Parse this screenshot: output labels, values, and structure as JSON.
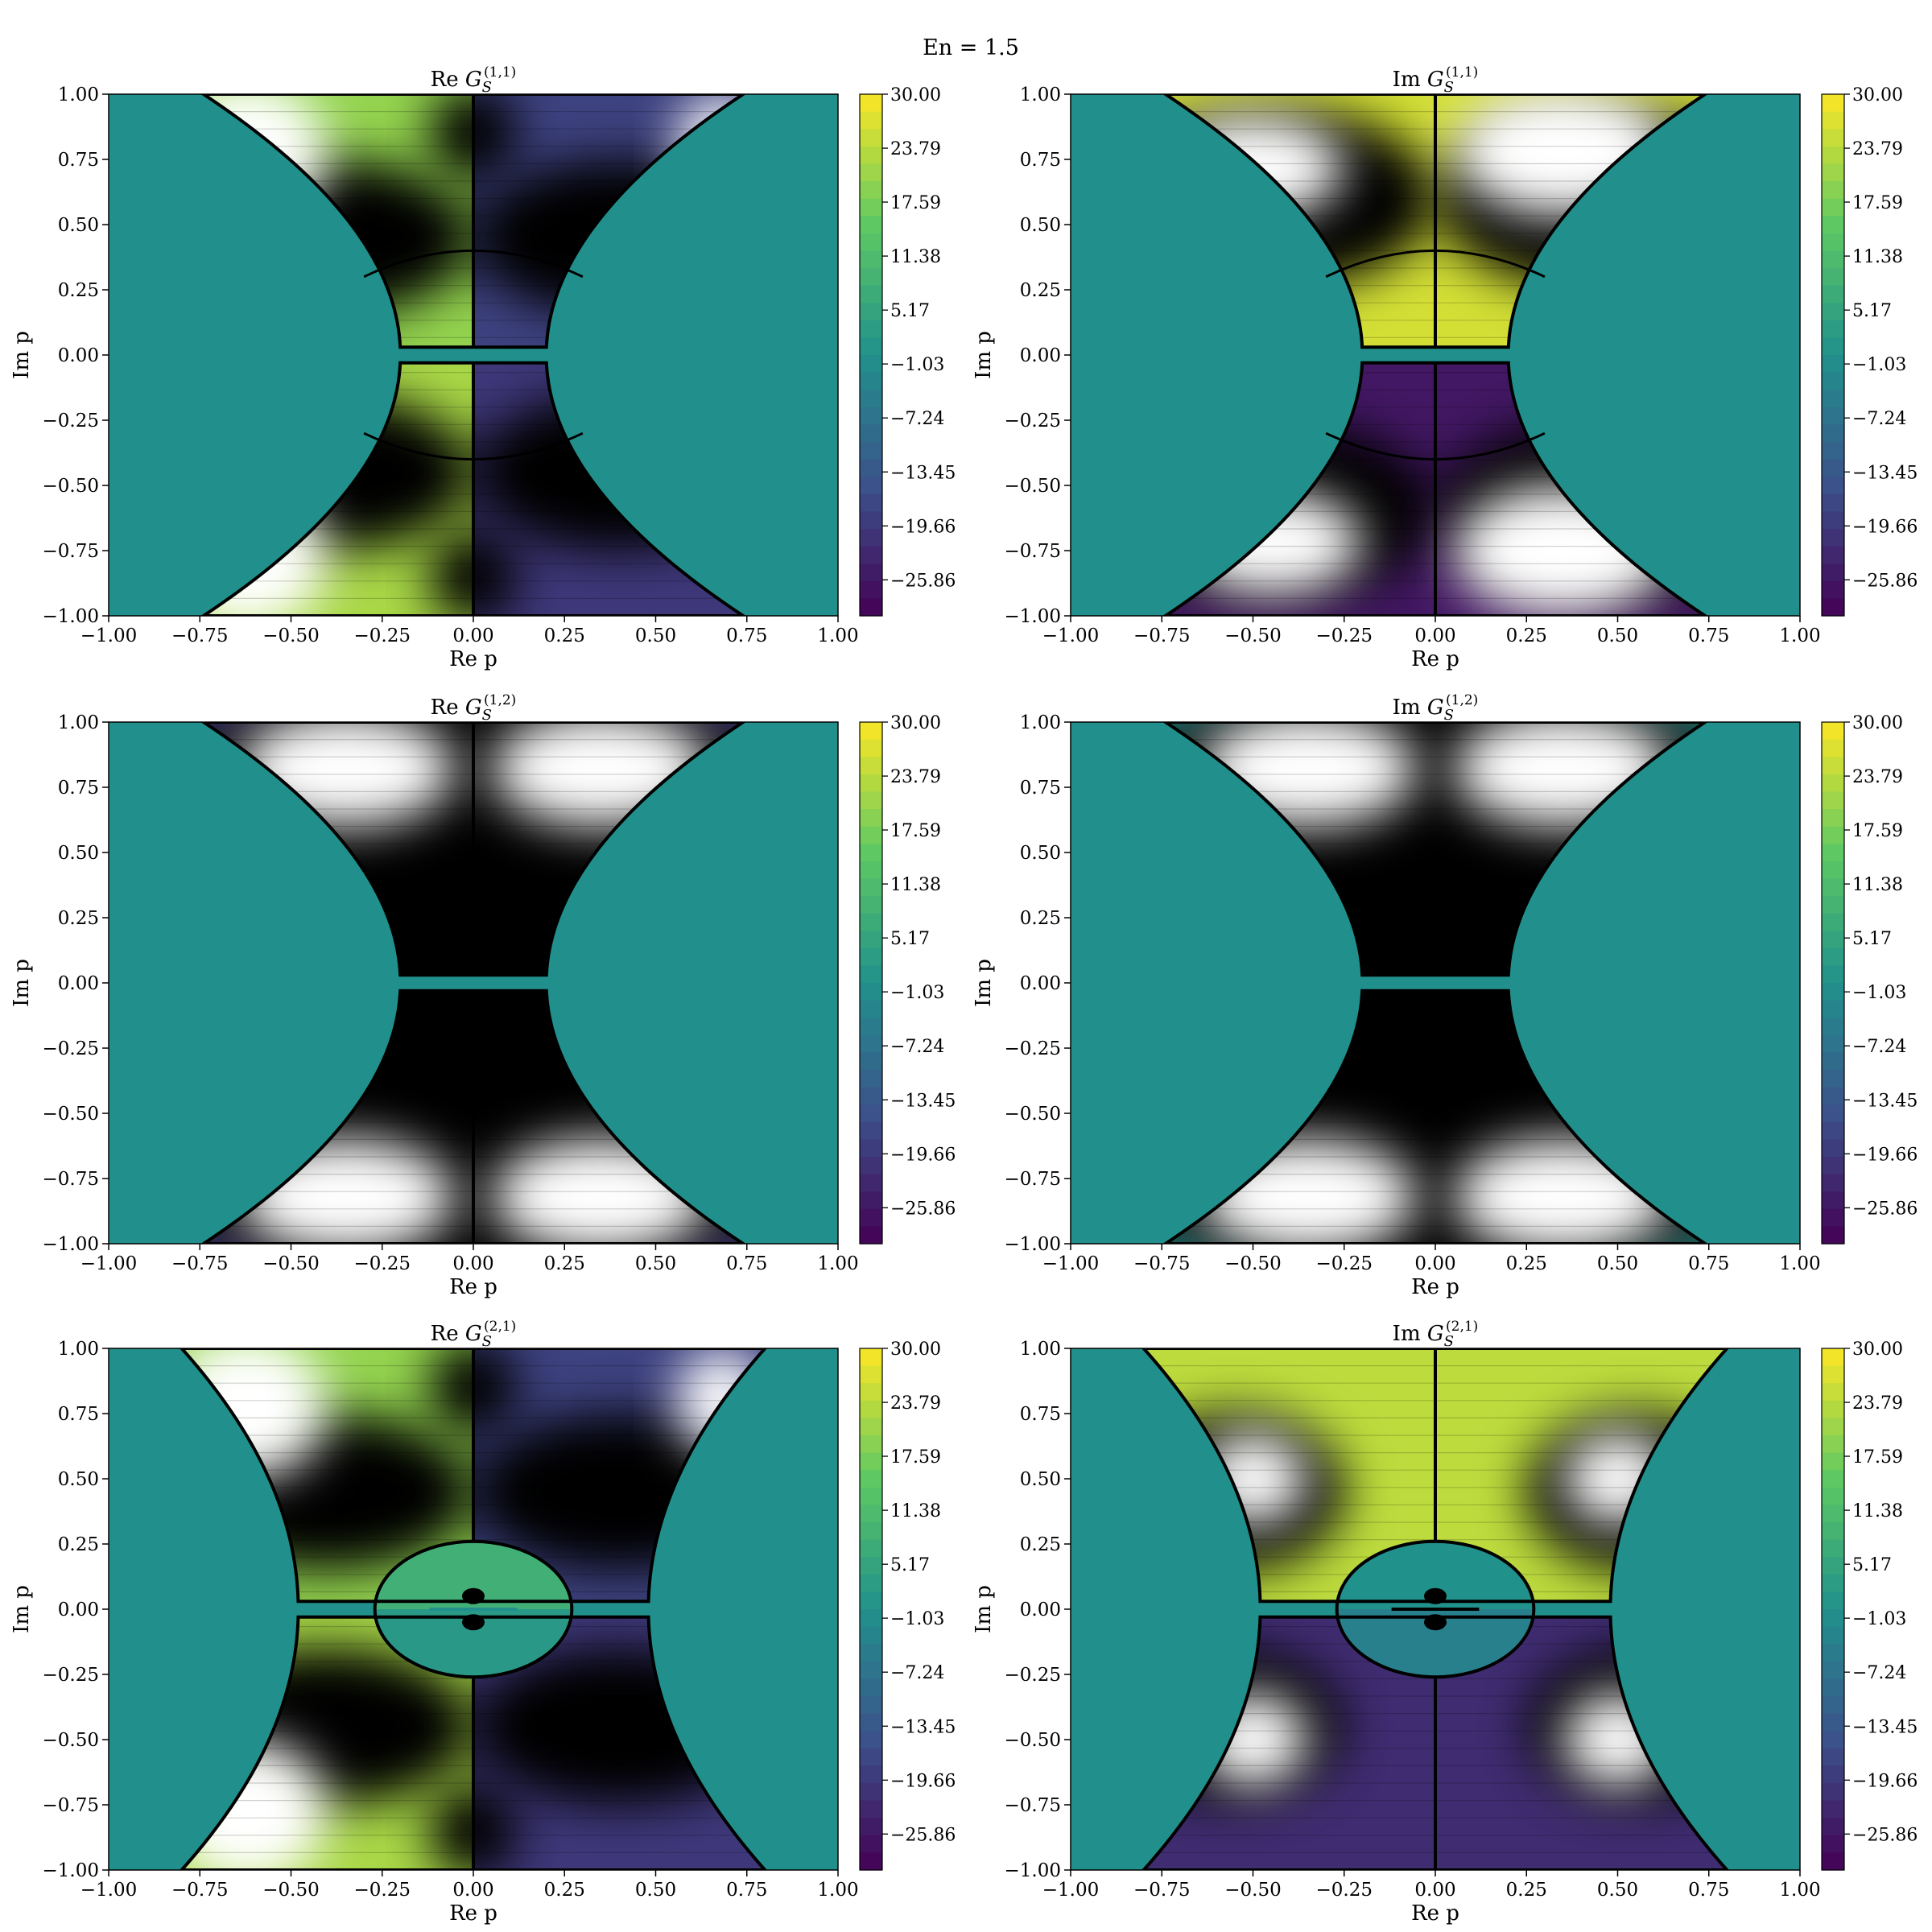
{
  "figure": {
    "suptitle": "En = 1.5",
    "xlabel": "Re p",
    "ylabel": "Im p"
  },
  "colors": {
    "cmap": [
      "#440154",
      "#3b528b",
      "#21918c",
      "#5ec962",
      "#fde725"
    ],
    "outside": "#21908c",
    "black_region": "#000000",
    "white_region": "#ffffff"
  },
  "chart_data": [
    {
      "type": "heatmap",
      "title_prefix": "Re",
      "title_sym": "G",
      "title_sub": "S",
      "title_sup": "(1,1)",
      "xlim": [
        -1.0,
        1.0
      ],
      "ylim": [
        -1.0,
        1.0
      ],
      "xticks": [
        "−1.00",
        "−0.75",
        "−0.50",
        "−0.25",
        "0.00",
        "0.25",
        "0.50",
        "0.75",
        "1.00"
      ],
      "yticks": [
        "−1.00",
        "−0.75",
        "−0.50",
        "−0.25",
        "0.00",
        "0.25",
        "0.50",
        "0.75",
        "1.00"
      ],
      "colorbar_ticks": [
        "30.00",
        "23.79",
        "17.59",
        "11.38",
        "5.17",
        "−1.03",
        "−7.24",
        "−13.45",
        "−19.66",
        "−25.86"
      ],
      "colorbar_range": [
        -30,
        30
      ],
      "boundary_x_at_edge": 0.74,
      "boundary_x_at_center": 0.2,
      "inner_arc_y": 0.4,
      "pattern": "re11"
    },
    {
      "type": "heatmap",
      "title_prefix": "Im",
      "title_sym": "G",
      "title_sub": "S",
      "title_sup": "(1,1)",
      "xlim": [
        -1.0,
        1.0
      ],
      "ylim": [
        -1.0,
        1.0
      ],
      "xticks": [
        "−1.00",
        "−0.75",
        "−0.50",
        "−0.25",
        "0.00",
        "0.25",
        "0.50",
        "0.75",
        "1.00"
      ],
      "yticks": [
        "−1.00",
        "−0.75",
        "−0.50",
        "−0.25",
        "0.00",
        "0.25",
        "0.50",
        "0.75",
        "1.00"
      ],
      "colorbar_ticks": [
        "30.00",
        "23.79",
        "17.59",
        "11.38",
        "5.17",
        "−1.03",
        "−7.24",
        "−13.45",
        "−19.66",
        "−25.86"
      ],
      "colorbar_range": [
        -30,
        30
      ],
      "boundary_x_at_edge": 0.74,
      "boundary_x_at_center": 0.2,
      "inner_arc_y": 0.4,
      "pattern": "im11"
    },
    {
      "type": "heatmap",
      "title_prefix": "Re",
      "title_sym": "G",
      "title_sub": "S",
      "title_sup": "(1,2)",
      "xlim": [
        -1.0,
        1.0
      ],
      "ylim": [
        -1.0,
        1.0
      ],
      "xticks": [
        "−1.00",
        "−0.75",
        "−0.50",
        "−0.25",
        "0.00",
        "0.25",
        "0.50",
        "0.75",
        "1.00"
      ],
      "yticks": [
        "−1.00",
        "−0.75",
        "−0.50",
        "−0.25",
        "0.00",
        "0.25",
        "0.50",
        "0.75",
        "1.00"
      ],
      "colorbar_ticks": [
        "30.00",
        "23.79",
        "17.59",
        "11.38",
        "5.17",
        "−1.03",
        "−7.24",
        "−13.45",
        "−19.66",
        "−25.86"
      ],
      "colorbar_range": [
        -30,
        30
      ],
      "boundary_x_at_edge": 0.74,
      "boundary_x_at_center": 0.2,
      "inner_arc_y": 0,
      "pattern": "re12"
    },
    {
      "type": "heatmap",
      "title_prefix": "Im",
      "title_sym": "G",
      "title_sub": "S",
      "title_sup": "(1,2)",
      "xlim": [
        -1.0,
        1.0
      ],
      "ylim": [
        -1.0,
        1.0
      ],
      "xticks": [
        "−1.00",
        "−0.75",
        "−0.50",
        "−0.25",
        "0.00",
        "0.25",
        "0.50",
        "0.75",
        "1.00"
      ],
      "yticks": [
        "−1.00",
        "−0.75",
        "−0.50",
        "−0.25",
        "0.00",
        "0.25",
        "0.50",
        "0.75",
        "1.00"
      ],
      "colorbar_ticks": [
        "30.00",
        "23.79",
        "17.59",
        "11.38",
        "5.17",
        "−1.03",
        "−7.24",
        "−13.45",
        "−19.66",
        "−25.86"
      ],
      "colorbar_range": [
        -30,
        30
      ],
      "boundary_x_at_edge": 0.74,
      "boundary_x_at_center": 0.2,
      "inner_arc_y": 0,
      "pattern": "im12"
    },
    {
      "type": "heatmap",
      "title_prefix": "Re",
      "title_sym": "G",
      "title_sub": "S",
      "title_sup": "(2,1)",
      "xlim": [
        -1.0,
        1.0
      ],
      "ylim": [
        -1.0,
        1.0
      ],
      "xticks": [
        "−1.00",
        "−0.75",
        "−0.50",
        "−0.25",
        "0.00",
        "0.25",
        "0.50",
        "0.75",
        "1.00"
      ],
      "yticks": [
        "−1.00",
        "−0.75",
        "−0.50",
        "−0.25",
        "0.00",
        "0.25",
        "0.50",
        "0.75",
        "1.00"
      ],
      "colorbar_ticks": [
        "30.00",
        "23.79",
        "17.59",
        "11.38",
        "5.17",
        "−1.03",
        "−7.24",
        "−13.45",
        "−19.66",
        "−25.86"
      ],
      "colorbar_range": [
        -30,
        30
      ],
      "boundary_x_at_edge": 0.8,
      "boundary_x_at_center": 0.48,
      "ellipse_rx": 0.27,
      "ellipse_ry": 0.26,
      "pattern": "re21"
    },
    {
      "type": "heatmap",
      "title_prefix": "Im",
      "title_sym": "G",
      "title_sub": "S",
      "title_sup": "(2,1)",
      "xlim": [
        -1.0,
        1.0
      ],
      "ylim": [
        -1.0,
        1.0
      ],
      "xticks": [
        "−1.00",
        "−0.75",
        "−0.50",
        "−0.25",
        "0.00",
        "0.25",
        "0.50",
        "0.75",
        "1.00"
      ],
      "yticks": [
        "−1.00",
        "−0.75",
        "−0.50",
        "−0.25",
        "0.00",
        "0.25",
        "0.50",
        "0.75",
        "1.00"
      ],
      "colorbar_ticks": [
        "30.00",
        "23.79",
        "17.59",
        "11.38",
        "5.17",
        "−1.03",
        "−7.24",
        "−13.45",
        "−19.66",
        "−25.86"
      ],
      "colorbar_range": [
        -30,
        30
      ],
      "boundary_x_at_edge": 0.8,
      "boundary_x_at_center": 0.48,
      "ellipse_rx": 0.27,
      "ellipse_ry": 0.26,
      "pattern": "im21"
    }
  ]
}
